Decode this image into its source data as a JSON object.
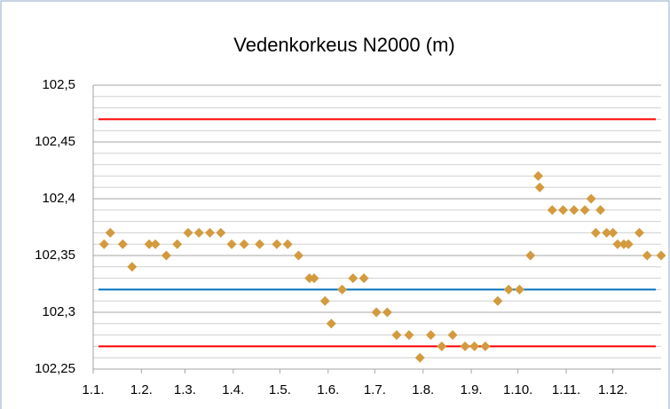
{
  "chart_data": {
    "type": "scatter",
    "title": "Vedenkorkeus  N2000 (m)",
    "x": [
      8,
      12,
      20,
      26,
      37,
      41,
      48,
      55,
      62,
      69,
      76,
      83,
      90,
      98,
      108,
      119,
      126,
      133,
      140,
      143,
      150,
      154,
      161,
      168,
      175,
      183,
      190,
      196,
      204,
      211,
      218,
      225,
      232,
      240,
      246,
      253,
      261,
      268,
      275,
      282,
      287,
      288,
      296,
      303,
      310,
      317,
      321,
      324,
      327,
      331,
      335,
      338,
      342,
      345,
      352,
      357,
      366
    ],
    "series": [
      {
        "color": "#d39a3e",
        "values": [
          102.36,
          102.37,
          102.36,
          102.34,
          102.36,
          102.36,
          102.35,
          102.36,
          102.37,
          102.37,
          102.37,
          102.37,
          102.36,
          102.36,
          102.36,
          102.36,
          102.36,
          102.35,
          102.33,
          102.33,
          102.31,
          102.29,
          102.32,
          102.33,
          102.33,
          102.3,
          102.3,
          102.28,
          102.28,
          102.26,
          102.28,
          102.27,
          102.28,
          102.27,
          102.27,
          102.27,
          102.31,
          102.32,
          102.32,
          102.35,
          102.42,
          102.41,
          102.39,
          102.39,
          102.39,
          102.39,
          102.4,
          102.37,
          102.39,
          102.37,
          102.37,
          102.36,
          102.36,
          102.36,
          102.37,
          102.35,
          102.35
        ]
      }
    ],
    "reference_lines": [
      {
        "value": 102.47,
        "color": "#ff0000"
      },
      {
        "value": 102.32,
        "color": "#0070c0"
      },
      {
        "value": 102.27,
        "color": "#ff0000"
      }
    ],
    "xlim": [
      1,
      366
    ],
    "xticks": [
      {
        "value": 1,
        "label": "1.1."
      },
      {
        "value": 32,
        "label": "1.2."
      },
      {
        "value": 60,
        "label": "1.3."
      },
      {
        "value": 91,
        "label": "1.4."
      },
      {
        "value": 121,
        "label": "1.5."
      },
      {
        "value": 152,
        "label": "1.6."
      },
      {
        "value": 182,
        "label": "1.7."
      },
      {
        "value": 213,
        "label": "1.8."
      },
      {
        "value": 244,
        "label": "1.9."
      },
      {
        "value": 274,
        "label": "1.10."
      },
      {
        "value": 305,
        "label": "1.11."
      },
      {
        "value": 335,
        "label": "1.12."
      }
    ],
    "ylim": [
      102.25,
      102.5
    ],
    "yticks": [
      {
        "value": 102.25,
        "label": "102,25"
      },
      {
        "value": 102.3,
        "label": "102,3"
      },
      {
        "value": 102.35,
        "label": "102,35"
      },
      {
        "value": 102.4,
        "label": "102,4"
      },
      {
        "value": 102.45,
        "label": "102,45"
      },
      {
        "value": 102.5,
        "label": "102,5"
      }
    ],
    "minor_yticks": [
      102.26,
      102.27,
      102.28,
      102.29,
      102.31,
      102.32,
      102.33,
      102.34,
      102.36,
      102.37,
      102.38,
      102.39,
      102.41,
      102.42,
      102.43,
      102.44,
      102.46,
      102.47,
      102.48,
      102.49
    ],
    "grid": true
  }
}
